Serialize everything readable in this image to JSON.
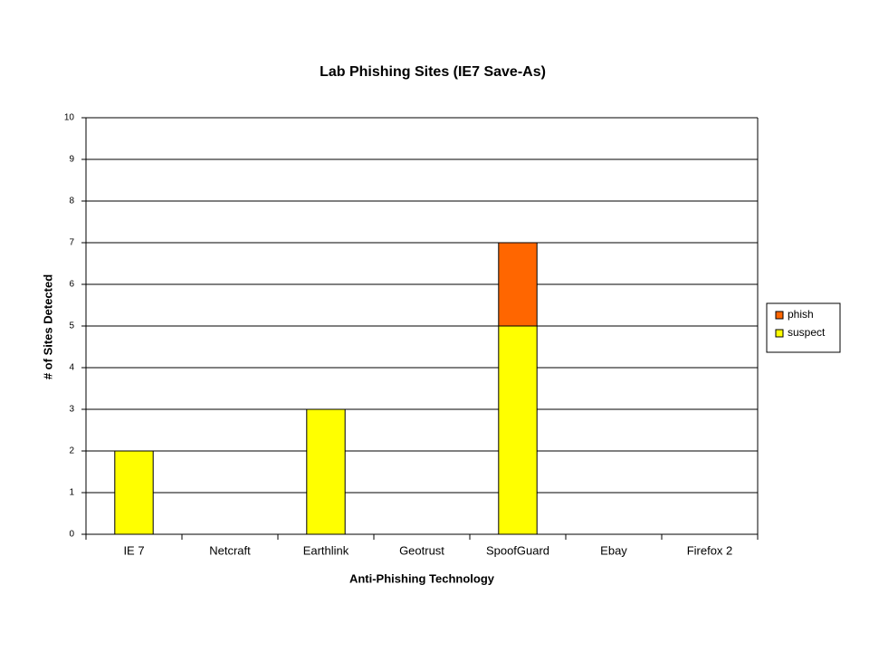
{
  "chart_data": {
    "type": "stacked-bar",
    "title": "Lab Phishing Sites (IE7 Save-As)",
    "x_label": "Anti-Phishing Technology",
    "y_label": "# of Sites Detected",
    "categories": [
      "IE 7",
      "Netcraft",
      "Earthlink",
      "Geotrust",
      "SpoofGuard",
      "Ebay",
      "Firefox 2"
    ],
    "series": [
      {
        "name": "suspect",
        "color": "#ffff00",
        "values": [
          2,
          0,
          3,
          0,
          5,
          0,
          0
        ]
      },
      {
        "name": "phish",
        "color": "#ff6600",
        "values": [
          0,
          0,
          0,
          0,
          2,
          0,
          0
        ]
      }
    ],
    "ylim": [
      0,
      10
    ],
    "yticks": [
      0,
      1,
      2,
      3,
      4,
      5,
      6,
      7,
      8,
      9,
      10
    ],
    "grid": true,
    "legend": "right"
  }
}
